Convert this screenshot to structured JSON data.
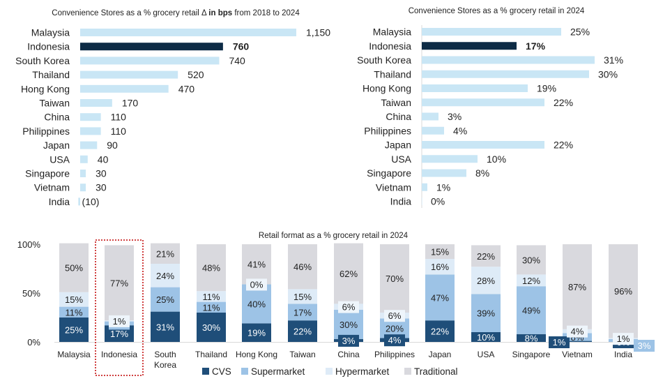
{
  "colors": {
    "highlight": "#0d2b45",
    "light_bar": "#c9e6f5",
    "cvs": "#1f4e79",
    "supermarket": "#9dc3e6",
    "hypermarket": "#deebf7",
    "traditional": "#d9d9de",
    "dotted_box": "#c00000"
  },
  "chart_data": [
    {
      "type": "bar",
      "orientation": "horizontal",
      "title": "Convenience Stores as a % grocery retail Δ in bps from 2018 to 2024",
      "categories": [
        "Malaysia",
        "Indonesia",
        "South Korea",
        "Thailand",
        "Hong Kong",
        "Taiwan",
        "China",
        "Philippines",
        "Japan",
        "USA",
        "Singapore",
        "Vietnam",
        "India"
      ],
      "values": [
        1150,
        760,
        740,
        520,
        470,
        170,
        110,
        110,
        90,
        40,
        30,
        30,
        -10
      ],
      "value_labels": [
        "1,150",
        "760",
        "740",
        "520",
        "470",
        "170",
        "110",
        "110",
        "90",
        "40",
        "30",
        "30",
        "(10)"
      ],
      "highlight": "Indonesia"
    },
    {
      "type": "bar",
      "orientation": "horizontal",
      "title": "Convenience Stores as a % grocery retail in 2024",
      "categories": [
        "Malaysia",
        "Indonesia",
        "South Korea",
        "Thailand",
        "Hong Kong",
        "Taiwan",
        "China",
        "Philippines",
        "Japan",
        "USA",
        "Singapore",
        "Vietnam",
        "India"
      ],
      "values": [
        25,
        17,
        31,
        30,
        19,
        22,
        3,
        4,
        22,
        10,
        8,
        1,
        0
      ],
      "value_labels": [
        "25%",
        "17%",
        "31%",
        "30%",
        "19%",
        "22%",
        "3%",
        "4%",
        "22%",
        "10%",
        "8%",
        "1%",
        "0%"
      ],
      "highlight": "Indonesia"
    },
    {
      "type": "bar",
      "stacked": true,
      "title": "Retail format as a % grocery retail in 2024",
      "categories": [
        "Malaysia",
        "Indonesia",
        "South\nKorea",
        "Thailand",
        "Hong Kong",
        "Taiwan",
        "China",
        "Philippines",
        "Japan",
        "USA",
        "Singapore",
        "Vietnam",
        "India"
      ],
      "yticks": [
        "0%",
        "50%",
        "100%"
      ],
      "ylim": [
        0,
        100
      ],
      "highlight": "Indonesia",
      "series": [
        {
          "name": "CVS",
          "values": [
            25,
            17,
            31,
            30,
            19,
            22,
            3,
            4,
            22,
            10,
            8,
            1,
            0
          ]
        },
        {
          "name": "Supermarket",
          "values": [
            11,
            4,
            25,
            11,
            40,
            17,
            30,
            20,
            47,
            39,
            49,
            8,
            3
          ]
        },
        {
          "name": "Hypermarket",
          "values": [
            15,
            1,
            24,
            11,
            0,
            15,
            6,
            6,
            16,
            28,
            12,
            4,
            1
          ]
        },
        {
          "name": "Traditional",
          "values": [
            50,
            77,
            21,
            48,
            41,
            46,
            62,
            70,
            15,
            22,
            30,
            87,
            96
          ]
        }
      ]
    }
  ]
}
